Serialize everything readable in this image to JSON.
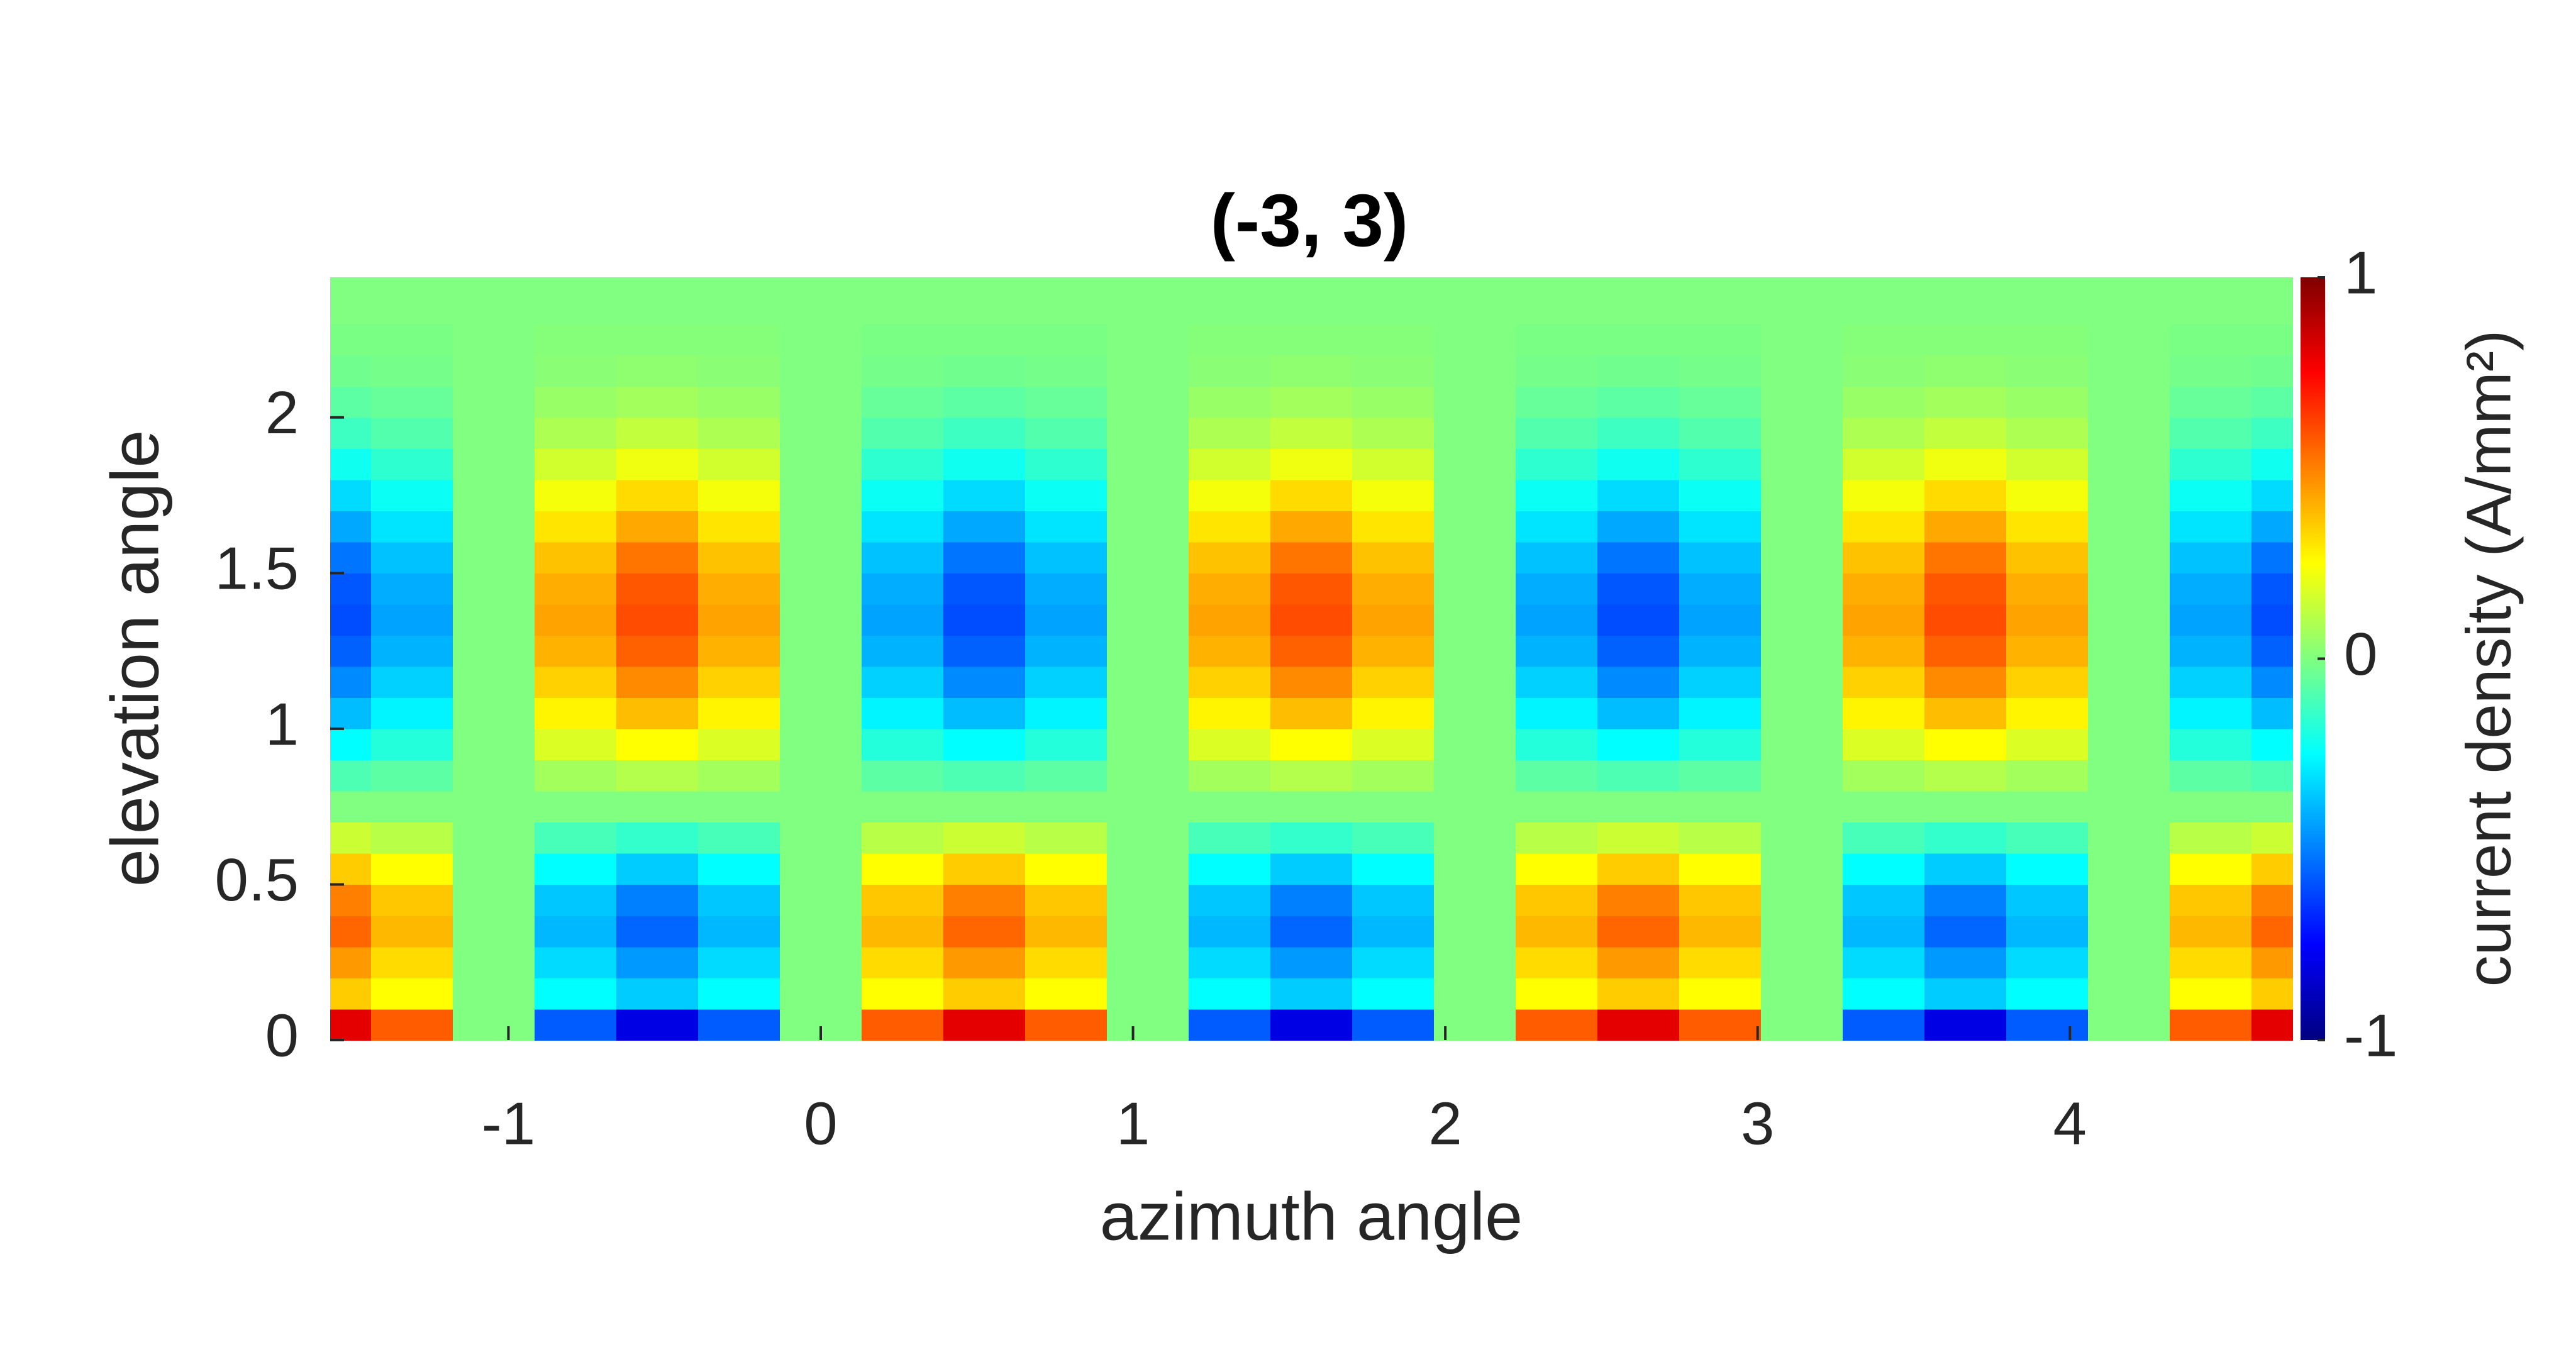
{
  "chart_data": {
    "type": "contour",
    "title": "(-3, 3)",
    "x_label": "azimuth angle",
    "y_label": "elevation angle",
    "xlim": [
      -1.5708,
      4.7124
    ],
    "ylim": [
      0,
      2.45
    ],
    "xticks": [
      -1,
      0,
      1,
      2,
      3,
      4
    ],
    "yticks": [
      0,
      0.5,
      1,
      1.5,
      2
    ],
    "x": [
      -1.5708,
      -1.309,
      -1.0472,
      -0.7854,
      -0.5236,
      -0.2618,
      0,
      0.2618,
      0.5236,
      0.7854,
      1.0472,
      1.309,
      1.5708,
      1.8326,
      2.0944,
      2.3562,
      2.618,
      2.8798,
      3.1416,
      3.4034,
      3.6652,
      3.927,
      4.1888,
      4.4506,
      4.7124
    ],
    "y": [
      0.05,
      0.15,
      0.25,
      0.35,
      0.45,
      0.55,
      0.65,
      0.75,
      0.85,
      0.95,
      1.05,
      1.15,
      1.25,
      1.35,
      1.45,
      1.55,
      1.65,
      1.75,
      1.85,
      1.95,
      2.05,
      2.15,
      2.25,
      2.35
    ],
    "z": [
      [
        0.8,
        0.57,
        0,
        -0.57,
        -0.8,
        -0.57,
        0,
        0.57,
        0.8,
        0.57,
        0,
        -0.57,
        -0.8,
        -0.57,
        0,
        0.57,
        0.8,
        0.57,
        0,
        -0.57,
        -0.8,
        -0.57,
        0,
        0.57,
        0.8
      ],
      [
        0.35,
        0.25,
        0,
        -0.25,
        -0.35,
        -0.25,
        0,
        0.25,
        0.35,
        0.25,
        0,
        -0.25,
        -0.35,
        -0.25,
        0,
        0.25,
        0.35,
        0.25,
        0,
        -0.25,
        -0.35,
        -0.25,
        0,
        0.25,
        0.35
      ],
      [
        0.45,
        0.32,
        0,
        -0.32,
        -0.45,
        -0.32,
        0,
        0.32,
        0.45,
        0.32,
        0,
        -0.32,
        -0.45,
        -0.32,
        0,
        0.32,
        0.45,
        0.32,
        0,
        -0.32,
        -0.45,
        -0.32,
        0,
        0.32,
        0.45
      ],
      [
        0.55,
        0.39,
        0,
        -0.39,
        -0.55,
        -0.39,
        0,
        0.39,
        0.55,
        0.39,
        0,
        -0.39,
        -0.55,
        -0.39,
        0,
        0.39,
        0.55,
        0.39,
        0,
        -0.39,
        -0.55,
        -0.39,
        0,
        0.39,
        0.55
      ],
      [
        0.5,
        0.36,
        0,
        -0.36,
        -0.5,
        -0.36,
        0,
        0.36,
        0.5,
        0.36,
        0,
        -0.36,
        -0.5,
        -0.36,
        0,
        0.36,
        0.5,
        0.36,
        0,
        -0.36,
        -0.5,
        -0.36,
        0,
        0.36,
        0.5
      ],
      [
        0.35,
        0.25,
        0,
        -0.25,
        -0.35,
        -0.25,
        0,
        0.25,
        0.35,
        0.25,
        0,
        -0.25,
        -0.35,
        -0.25,
        0,
        0.25,
        0.35,
        0.25,
        0,
        -0.25,
        -0.35,
        -0.25,
        0,
        0.25,
        0.35
      ],
      [
        0.15,
        0.11,
        0,
        -0.11,
        -0.15,
        -0.11,
        0,
        0.11,
        0.15,
        0.11,
        0,
        -0.11,
        -0.15,
        -0.11,
        0,
        0.11,
        0.15,
        0.11,
        0,
        -0.11,
        -0.15,
        -0.11,
        0,
        0.11,
        0.15
      ],
      [
        0,
        0,
        0,
        0,
        0,
        0,
        0,
        0,
        0,
        0,
        0,
        0,
        0,
        0,
        0,
        0,
        0,
        0,
        0,
        0,
        0,
        0,
        0,
        0,
        0
      ],
      [
        -0.1,
        -0.07,
        0,
        0.07,
        0.1,
        0.07,
        0,
        -0.07,
        -0.1,
        -0.07,
        0,
        0.07,
        0.1,
        0.07,
        0,
        -0.07,
        -0.1,
        -0.07,
        0,
        0.07,
        0.1,
        0.07,
        0,
        -0.07,
        -0.1
      ],
      [
        -0.25,
        -0.18,
        0,
        0.18,
        0.25,
        0.18,
        0,
        -0.18,
        -0.25,
        -0.18,
        0,
        0.18,
        0.25,
        0.18,
        0,
        -0.18,
        -0.25,
        -0.18,
        0,
        0.18,
        0.25,
        0.18,
        0,
        -0.18,
        -0.25
      ],
      [
        -0.38,
        -0.27,
        0,
        0.27,
        0.38,
        0.27,
        0,
        -0.27,
        -0.38,
        -0.27,
        0,
        0.27,
        0.38,
        0.27,
        0,
        -0.27,
        -0.38,
        -0.27,
        0,
        0.27,
        0.38,
        0.27,
        0,
        -0.27,
        -0.38
      ],
      [
        -0.48,
        -0.34,
        0,
        0.34,
        0.48,
        0.34,
        0,
        -0.34,
        -0.48,
        -0.34,
        0,
        0.34,
        0.48,
        0.34,
        0,
        -0.34,
        -0.48,
        -0.34,
        0,
        0.34,
        0.48,
        0.34,
        0,
        -0.34,
        -0.48
      ],
      [
        -0.56,
        -0.4,
        0,
        0.4,
        0.56,
        0.4,
        0,
        -0.4,
        -0.56,
        -0.4,
        0,
        0.4,
        0.56,
        0.4,
        0,
        -0.4,
        -0.56,
        -0.4,
        0,
        0.4,
        0.56,
        0.4,
        0,
        -0.4,
        -0.56
      ],
      [
        -0.6,
        -0.43,
        0,
        0.43,
        0.6,
        0.43,
        0,
        -0.43,
        -0.6,
        -0.43,
        0,
        0.43,
        0.6,
        0.43,
        0,
        -0.43,
        -0.6,
        -0.43,
        0,
        0.43,
        0.6,
        0.43,
        0,
        -0.43,
        -0.6
      ],
      [
        -0.58,
        -0.41,
        0,
        0.41,
        0.58,
        0.41,
        0,
        -0.41,
        -0.58,
        -0.41,
        0,
        0.41,
        0.58,
        0.41,
        0,
        -0.41,
        -0.58,
        -0.41,
        0,
        0.41,
        0.58,
        0.41,
        0,
        -0.41,
        -0.58
      ],
      [
        -0.52,
        -0.37,
        0,
        0.37,
        0.52,
        0.37,
        0,
        -0.37,
        -0.52,
        -0.37,
        0,
        0.37,
        0.52,
        0.37,
        0,
        -0.37,
        -0.52,
        -0.37,
        0,
        0.37,
        0.52,
        0.37,
        0,
        -0.37,
        -0.52
      ],
      [
        -0.42,
        -0.3,
        0,
        0.3,
        0.42,
        0.3,
        0,
        -0.3,
        -0.42,
        -0.3,
        0,
        0.3,
        0.42,
        0.3,
        0,
        -0.3,
        -0.42,
        -0.3,
        0,
        0.3,
        0.42,
        0.3,
        0,
        -0.3,
        -0.42
      ],
      [
        -0.32,
        -0.23,
        0,
        0.23,
        0.32,
        0.23,
        0,
        -0.23,
        -0.32,
        -0.23,
        0,
        0.23,
        0.32,
        0.23,
        0,
        -0.23,
        -0.32,
        -0.23,
        0,
        0.23,
        0.32,
        0.23,
        0,
        -0.23,
        -0.32
      ],
      [
        -0.22,
        -0.16,
        0,
        0.16,
        0.22,
        0.16,
        0,
        -0.16,
        -0.22,
        -0.16,
        0,
        0.16,
        0.22,
        0.16,
        0,
        -0.16,
        -0.22,
        -0.16,
        0,
        0.16,
        0.22,
        0.16,
        0,
        -0.16,
        -0.22
      ],
      [
        -0.13,
        -0.09,
        0,
        0.09,
        0.13,
        0.09,
        0,
        -0.09,
        -0.13,
        -0.09,
        0,
        0.09,
        0.13,
        0.09,
        0,
        -0.09,
        -0.13,
        -0.09,
        0,
        0.09,
        0.13,
        0.09,
        0,
        -0.09,
        -0.13
      ],
      [
        -0.07,
        -0.05,
        0,
        0.05,
        0.07,
        0.05,
        0,
        -0.05,
        -0.07,
        -0.05,
        0,
        0.05,
        0.07,
        0.05,
        0,
        -0.05,
        -0.07,
        -0.05,
        0,
        0.05,
        0.07,
        0.05,
        0,
        -0.05,
        -0.07
      ],
      [
        -0.03,
        -0.02,
        0,
        0.02,
        0.03,
        0.02,
        0,
        -0.02,
        -0.03,
        -0.02,
        0,
        0.02,
        0.03,
        0.02,
        0,
        -0.02,
        -0.03,
        -0.02,
        0,
        0.02,
        0.03,
        0.02,
        0,
        -0.02,
        -0.03
      ],
      [
        -0.01,
        -0.01,
        0,
        0.01,
        0.01,
        0.01,
        0,
        -0.01,
        -0.01,
        -0.01,
        0,
        0.01,
        0.01,
        0.01,
        0,
        -0.01,
        -0.01,
        -0.01,
        0,
        0.01,
        0.01,
        0.01,
        0,
        -0.01,
        -0.01
      ],
      [
        0,
        0,
        0,
        0,
        0,
        0,
        0,
        0,
        0,
        0,
        0,
        0,
        0,
        0,
        0,
        0,
        0,
        0,
        0,
        0,
        0,
        0,
        0,
        0,
        0
      ]
    ],
    "colorbar": {
      "label": "current density (A/mm²)",
      "lim": [
        -1,
        1
      ],
      "ticks": [
        -1,
        0,
        1
      ],
      "colormap": "jet"
    }
  }
}
